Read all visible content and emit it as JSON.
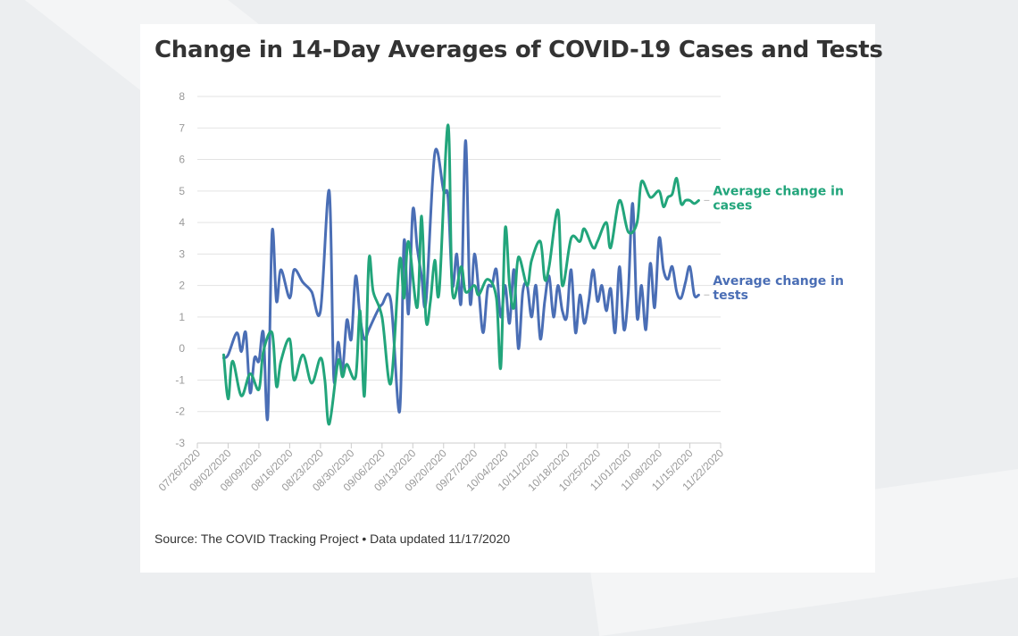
{
  "title": "Change in 14-Day Averages of COVID-19 Cases and Tests",
  "source": "Source: The COVID Tracking Project • Data updated 11/17/2020",
  "colors": {
    "cases": "#22a57b",
    "tests": "#4a6eb5",
    "grid": "#e3e3e3",
    "axis": "#cccccc"
  },
  "chart_data": {
    "type": "line",
    "title": "Change in 14-Day Averages of COVID-19 Cases and Tests",
    "xlabel": "",
    "ylabel": "",
    "ylim": [
      -3,
      8
    ],
    "yticks": [
      -3,
      -2,
      -1,
      0,
      1,
      2,
      3,
      4,
      5,
      6,
      7,
      8
    ],
    "xlim": [
      "2020-07-26",
      "2020-11-22"
    ],
    "xticks": [
      "07/26/2020",
      "08/02/2020",
      "08/09/2020",
      "08/16/2020",
      "08/23/2020",
      "08/30/2020",
      "09/06/2020",
      "09/13/2020",
      "09/20/2020",
      "09/27/2020",
      "10/04/2020",
      "10/11/2020",
      "10/18/2020",
      "10/25/2020",
      "11/01/2020",
      "11/08/2020",
      "11/15/2020",
      "11/22/2020"
    ],
    "grid": true,
    "legend": "direct labels at right end of lines",
    "series": [
      {
        "name": "Average change in cases",
        "label_lines": [
          "Average change in",
          "cases"
        ],
        "color": "#22a57b",
        "x": [
          "2020-08-01",
          "2020-08-02",
          "2020-08-03",
          "2020-08-05",
          "2020-08-07",
          "2020-08-09",
          "2020-08-10",
          "2020-08-12",
          "2020-08-13",
          "2020-08-14",
          "2020-08-16",
          "2020-08-17",
          "2020-08-19",
          "2020-08-21",
          "2020-08-23",
          "2020-08-24",
          "2020-08-25",
          "2020-08-27",
          "2020-08-28",
          "2020-08-29",
          "2020-08-31",
          "2020-09-01",
          "2020-09-02",
          "2020-09-03",
          "2020-09-04",
          "2020-09-06",
          "2020-09-08",
          "2020-09-10",
          "2020-09-11",
          "2020-09-12",
          "2020-09-14",
          "2020-09-15",
          "2020-09-16",
          "2020-09-17",
          "2020-09-18",
          "2020-09-19",
          "2020-09-21",
          "2020-09-22",
          "2020-09-24",
          "2020-09-25",
          "2020-09-27",
          "2020-09-28",
          "2020-09-30",
          "2020-10-02",
          "2020-10-03",
          "2020-10-04",
          "2020-10-05",
          "2020-10-06",
          "2020-10-07",
          "2020-10-09",
          "2020-10-10",
          "2020-10-12",
          "2020-10-13",
          "2020-10-14",
          "2020-10-16",
          "2020-10-17",
          "2020-10-19",
          "2020-10-21",
          "2020-10-22",
          "2020-10-24",
          "2020-10-25",
          "2020-10-27",
          "2020-10-28",
          "2020-10-30",
          "2020-11-01",
          "2020-11-03",
          "2020-11-04",
          "2020-11-06",
          "2020-11-08",
          "2020-11-09",
          "2020-11-10",
          "2020-11-11",
          "2020-11-12",
          "2020-11-13",
          "2020-11-14",
          "2020-11-15",
          "2020-11-16",
          "2020-11-17"
        ],
        "y": [
          -0.2,
          -1.6,
          -0.4,
          -1.5,
          -0.8,
          -1.3,
          -0.1,
          0.5,
          -1.2,
          -0.4,
          0.3,
          -1.0,
          -0.2,
          -1.1,
          -0.3,
          -1.0,
          -2.4,
          -0.4,
          -0.9,
          -0.5,
          -0.9,
          1.2,
          -1.5,
          2.8,
          1.8,
          1.0,
          -1.1,
          2.8,
          1.6,
          3.4,
          1.3,
          4.2,
          0.9,
          1.5,
          2.8,
          1.8,
          7.1,
          1.8,
          2.6,
          1.8,
          2.0,
          1.7,
          2.2,
          1.6,
          -0.6,
          3.8,
          2.0,
          1.3,
          2.9,
          2.0,
          2.8,
          3.4,
          2.2,
          2.6,
          4.4,
          2.0,
          3.5,
          3.4,
          3.8,
          3.2,
          3.4,
          4.0,
          3.2,
          4.7,
          3.7,
          4.0,
          5.3,
          4.8,
          5.0,
          4.5,
          4.8,
          4.9,
          5.4,
          4.6,
          4.7,
          4.7,
          4.6,
          4.7
        ]
      },
      {
        "name": "Average change in tests",
        "label_lines": [
          "Average change in",
          "tests"
        ],
        "color": "#4a6eb5",
        "x": [
          "2020-08-01",
          "2020-08-02",
          "2020-08-04",
          "2020-08-05",
          "2020-08-06",
          "2020-08-07",
          "2020-08-08",
          "2020-08-09",
          "2020-08-10",
          "2020-08-11",
          "2020-08-12",
          "2020-08-13",
          "2020-08-14",
          "2020-08-16",
          "2020-08-17",
          "2020-08-19",
          "2020-08-21",
          "2020-08-23",
          "2020-08-25",
          "2020-08-26",
          "2020-08-27",
          "2020-08-28",
          "2020-08-29",
          "2020-08-30",
          "2020-08-31",
          "2020-09-01",
          "2020-09-02",
          "2020-09-03",
          "2020-09-05",
          "2020-09-06",
          "2020-09-08",
          "2020-09-10",
          "2020-09-11",
          "2020-09-12",
          "2020-09-13",
          "2020-09-14",
          "2020-09-15",
          "2020-09-16",
          "2020-09-18",
          "2020-09-20",
          "2020-09-21",
          "2020-09-22",
          "2020-09-23",
          "2020-09-24",
          "2020-09-25",
          "2020-09-26",
          "2020-09-27",
          "2020-09-28",
          "2020-09-29",
          "2020-09-30",
          "2020-10-01",
          "2020-10-02",
          "2020-10-03",
          "2020-10-04",
          "2020-10-05",
          "2020-10-06",
          "2020-10-07",
          "2020-10-08",
          "2020-10-09",
          "2020-10-10",
          "2020-10-11",
          "2020-10-12",
          "2020-10-13",
          "2020-10-14",
          "2020-10-15",
          "2020-10-16",
          "2020-10-17",
          "2020-10-18",
          "2020-10-19",
          "2020-10-20",
          "2020-10-21",
          "2020-10-22",
          "2020-10-23",
          "2020-10-24",
          "2020-10-25",
          "2020-10-26",
          "2020-10-27",
          "2020-10-28",
          "2020-10-29",
          "2020-10-30",
          "2020-10-31",
          "2020-11-01",
          "2020-11-02",
          "2020-11-03",
          "2020-11-04",
          "2020-11-05",
          "2020-11-06",
          "2020-11-07",
          "2020-11-08",
          "2020-11-09",
          "2020-11-10",
          "2020-11-11",
          "2020-11-12",
          "2020-11-13",
          "2020-11-14",
          "2020-11-15",
          "2020-11-16",
          "2020-11-17"
        ],
        "y": [
          -0.3,
          -0.2,
          0.5,
          -0.1,
          0.5,
          -1.4,
          -0.3,
          -0.4,
          0.5,
          -2.2,
          3.7,
          1.5,
          2.5,
          1.6,
          2.5,
          2.1,
          1.8,
          1.2,
          5.0,
          -0.9,
          0.2,
          -0.7,
          0.9,
          0.3,
          2.3,
          1.0,
          0.3,
          0.6,
          1.2,
          1.4,
          1.5,
          -2.0,
          3.4,
          1.1,
          4.4,
          3.2,
          2.3,
          1.5,
          6.2,
          5.0,
          4.8,
          2.0,
          3.0,
          1.5,
          6.6,
          1.5,
          3.0,
          1.8,
          0.5,
          1.9,
          2.0,
          2.5,
          1.0,
          2.0,
          0.8,
          2.5,
          0.0,
          1.8,
          2.0,
          1.0,
          2.0,
          0.3,
          1.5,
          2.3,
          1.0,
          2.0,
          1.2,
          1.0,
          2.5,
          0.5,
          1.7,
          0.8,
          1.5,
          2.5,
          1.5,
          2.0,
          1.2,
          1.9,
          0.5,
          2.6,
          0.6,
          1.8,
          4.6,
          1.0,
          2.0,
          0.6,
          2.7,
          1.3,
          3.5,
          2.5,
          2.2,
          2.6,
          1.8,
          1.6,
          2.1,
          2.6,
          1.7,
          1.7
        ]
      }
    ]
  }
}
